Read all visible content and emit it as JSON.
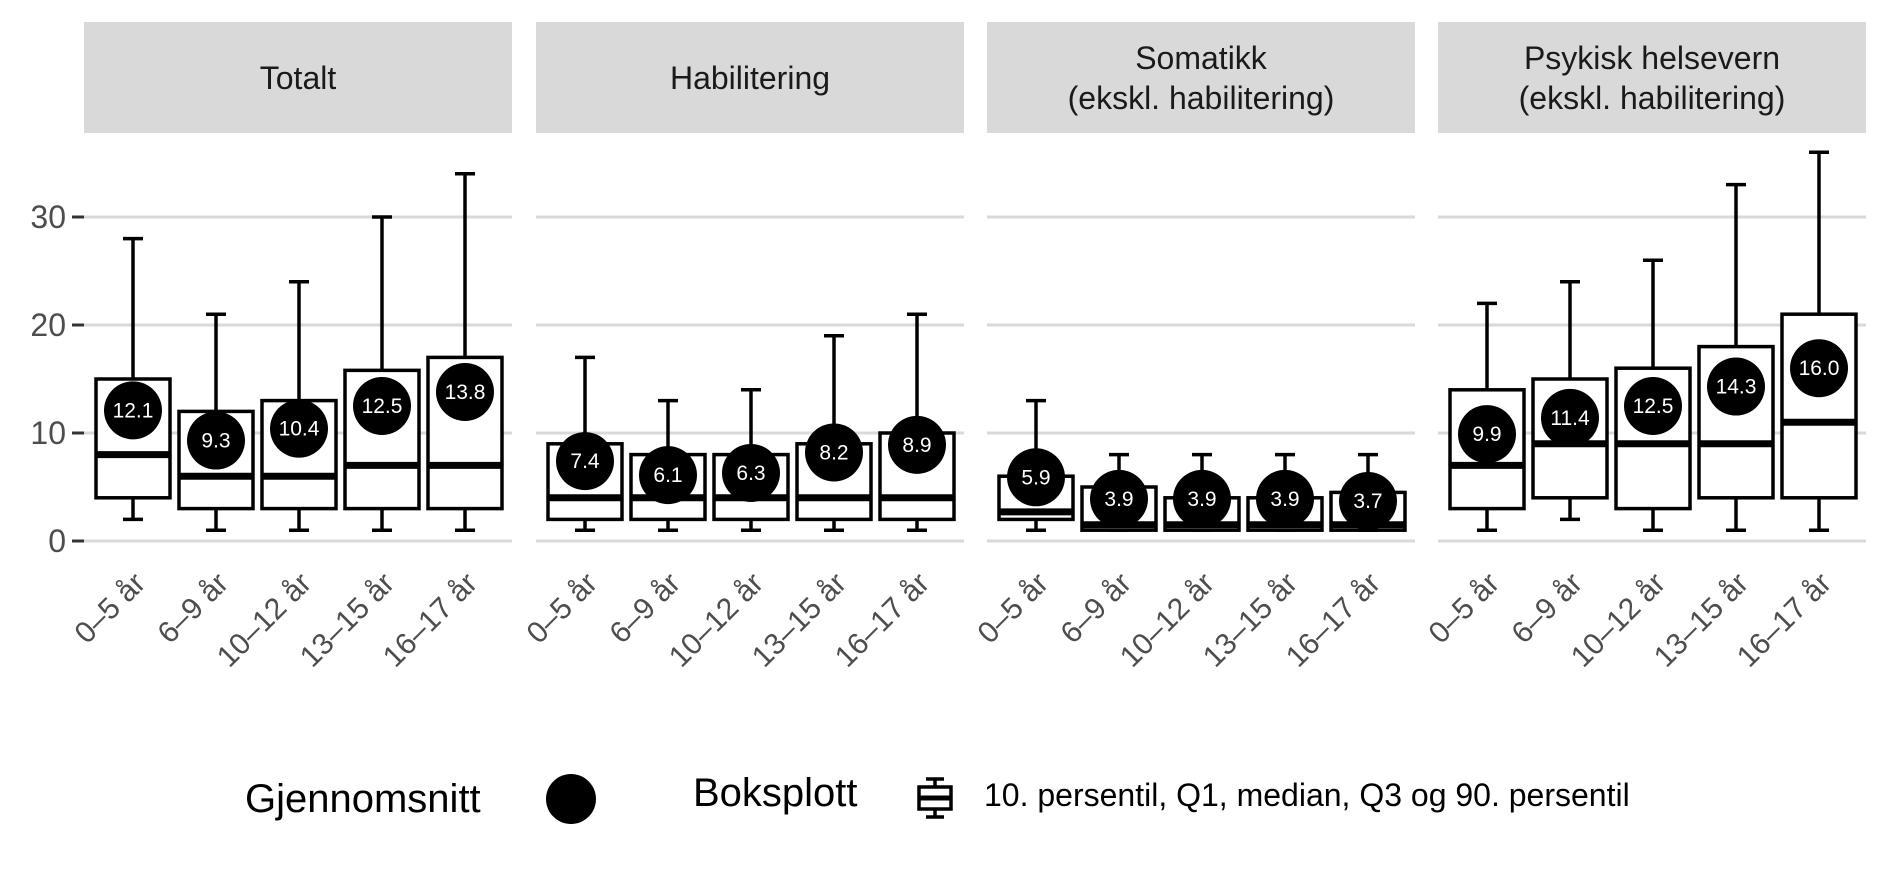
{
  "chart_data": {
    "type": "boxplot",
    "facets": [
      "Totalt",
      "Habilitering",
      "Somatikk\n(ekskl. habilitering)",
      "Psykisk helsevern\n(ekskl. habilitering)"
    ],
    "categories": [
      "0–5 år",
      "6–9 år",
      "10–12 år",
      "13–15 år",
      "16–17 år"
    ],
    "ylim": [
      0,
      37
    ],
    "yticks": [
      0,
      10,
      20,
      30
    ],
    "grid": true,
    "panels": [
      {
        "facet": "Totalt",
        "boxes": [
          {
            "p10": 2,
            "q1": 4,
            "median": 8,
            "q3": 15,
            "p90": 28,
            "mean": 12.1
          },
          {
            "p10": 1,
            "q1": 3,
            "median": 6,
            "q3": 12,
            "p90": 21,
            "mean": 9.3
          },
          {
            "p10": 1,
            "q1": 3,
            "median": 6,
            "q3": 13,
            "p90": 24,
            "mean": 10.4
          },
          {
            "p10": 1,
            "q1": 3,
            "median": 7,
            "q3": 15.8,
            "p90": 30,
            "mean": 12.5
          },
          {
            "p10": 1,
            "q1": 3,
            "median": 7,
            "q3": 17,
            "p90": 34,
            "mean": 13.8
          }
        ]
      },
      {
        "facet": "Habilitering",
        "boxes": [
          {
            "p10": 1,
            "q1": 2,
            "median": 4,
            "q3": 9,
            "p90": 17,
            "mean": 7.4
          },
          {
            "p10": 1,
            "q1": 2,
            "median": 4,
            "q3": 8,
            "p90": 13,
            "mean": 6.1
          },
          {
            "p10": 1,
            "q1": 2,
            "median": 4,
            "q3": 8,
            "p90": 14,
            "mean": 6.3
          },
          {
            "p10": 1,
            "q1": 2,
            "median": 4,
            "q3": 9,
            "p90": 19,
            "mean": 8.2
          },
          {
            "p10": 1,
            "q1": 2,
            "median": 4,
            "q3": 10,
            "p90": 21,
            "mean": 8.9
          }
        ]
      },
      {
        "facet": "Somatikk (ekskl. habilitering)",
        "boxes": [
          {
            "p10": 1,
            "q1": 2,
            "median": 2.7,
            "q3": 6,
            "p90": 13,
            "mean": 5.9
          },
          {
            "p10": 1,
            "q1": 1,
            "median": 1.5,
            "q3": 5,
            "p90": 8,
            "mean": 3.9
          },
          {
            "p10": 1,
            "q1": 1,
            "median": 1.5,
            "q3": 4,
            "p90": 8,
            "mean": 3.9
          },
          {
            "p10": 1,
            "q1": 1,
            "median": 1.5,
            "q3": 4,
            "p90": 8,
            "mean": 3.9
          },
          {
            "p10": 1,
            "q1": 1,
            "median": 1.5,
            "q3": 4.5,
            "p90": 8,
            "mean": 3.7
          }
        ]
      },
      {
        "facet": "Psykisk helsevern (ekskl. habilitering)",
        "boxes": [
          {
            "p10": 1,
            "q1": 3,
            "median": 7,
            "q3": 14,
            "p90": 22,
            "mean": 9.9
          },
          {
            "p10": 2,
            "q1": 4,
            "median": 9,
            "q3": 15,
            "p90": 24,
            "mean": 11.4
          },
          {
            "p10": 1,
            "q1": 3,
            "median": 9,
            "q3": 16,
            "p90": 26,
            "mean": 12.5
          },
          {
            "p10": 1,
            "q1": 4,
            "median": 9,
            "q3": 18,
            "p90": 33,
            "mean": 14.3
          },
          {
            "p10": 1,
            "q1": 4,
            "median": 11,
            "q3": 21,
            "p90": 36,
            "mean": 16.0
          }
        ]
      }
    ],
    "legend": {
      "position": "bottom",
      "mean_title": "Gjennomsnitt",
      "box_title": "Boksplott",
      "box_text": "10. persentil, Q1, median, Q3 og 90. persentil"
    },
    "colors": {
      "strip_bg": "#d9d9d9",
      "grid": "#d9d9d9",
      "marks": "#000000",
      "mean_text": "#ffffff",
      "tick_text": "#4d4d4d"
    }
  }
}
